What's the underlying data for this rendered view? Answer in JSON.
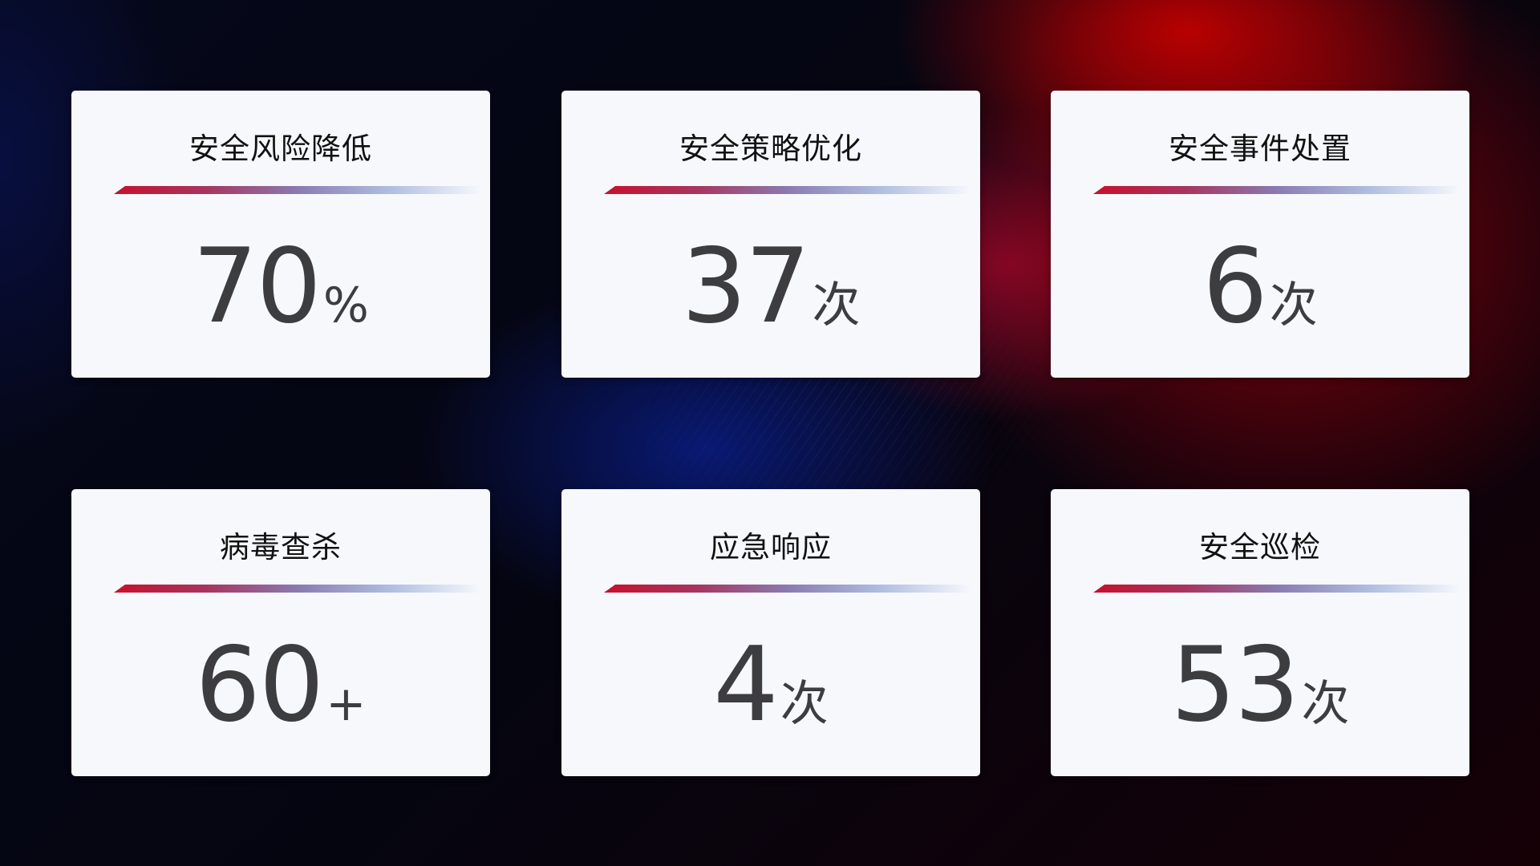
{
  "colors": {
    "accent_red": "#c8102e",
    "accent_blue": "#8a7ab0",
    "card_bg": "#f6f8fc",
    "value_text": "#3d3d3f"
  },
  "cards": [
    {
      "title": "安全风险降低",
      "value": "70",
      "unit": "%"
    },
    {
      "title": "安全策略优化",
      "value": "37",
      "unit": "次"
    },
    {
      "title": "安全事件处置",
      "value": "6",
      "unit": "次"
    },
    {
      "title": "病毒查杀",
      "value": "60",
      "unit": "+"
    },
    {
      "title": "应急响应",
      "value": "4",
      "unit": "次"
    },
    {
      "title": "安全巡检",
      "value": "53",
      "unit": "次"
    }
  ]
}
